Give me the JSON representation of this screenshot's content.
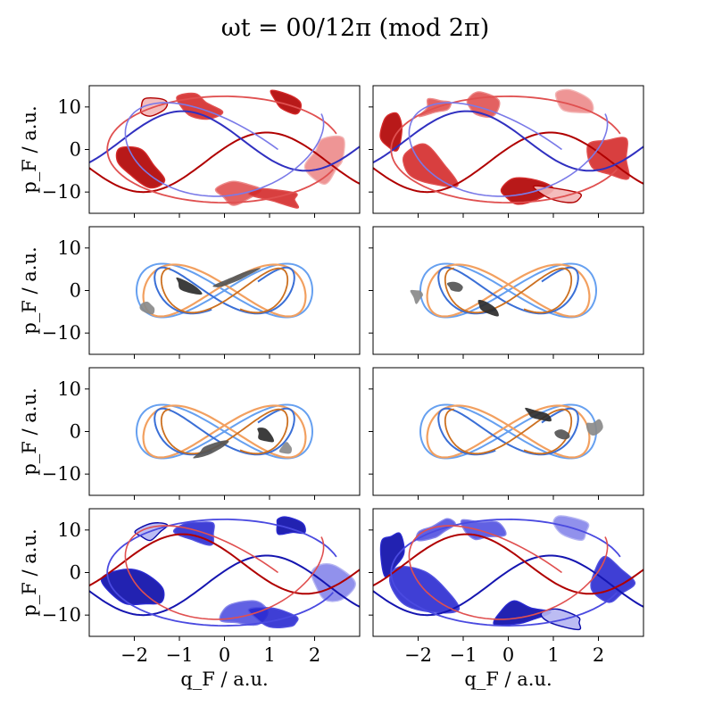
{
  "figure": {
    "title": "ωt = 00/12π    (mod 2π)",
    "xlabel": "q_F / a.u.",
    "ylabel": "p_F / a.u."
  },
  "chart_data": {
    "type": "phase-space grid",
    "rows": 4,
    "cols": 2,
    "xlim": [
      -3,
      3
    ],
    "ylim": [
      -15,
      15
    ],
    "xticks": [
      -2,
      -1,
      0,
      1,
      2
    ],
    "xtick_labels": [
      "−2",
      "−1",
      "0",
      "1",
      "2"
    ],
    "yticks": [
      -10,
      0,
      10
    ],
    "ytick_labels": [
      "−10",
      "0",
      "10"
    ],
    "palettes": {
      "red": [
        "#b00000",
        "#d42a2a",
        "#e05050",
        "#ec8a8a",
        "#f3b6b6"
      ],
      "gray": [
        "#2d2d2d",
        "#555555",
        "#8a8a8a",
        "#c4c4c4"
      ],
      "blue": [
        "#0a0aa8",
        "#2a2ad0",
        "#5050e0",
        "#8585ea",
        "#b5b5f2"
      ],
      "curves_red": [
        "#b00000",
        "#e05050",
        "#3030c0",
        "#7a7ae8"
      ],
      "curves_infinity": [
        "#3a6fd6",
        "#66a0f0",
        "#f2a060",
        "#cc7020",
        "#2a5cc8"
      ],
      "curves_blue": [
        "#1515b0",
        "#4a4ae0",
        "#b00000",
        "#e05050"
      ]
    },
    "panels": [
      {
        "row": 0,
        "col": 0,
        "theme": "red"
      },
      {
        "row": 0,
        "col": 1,
        "theme": "red"
      },
      {
        "row": 1,
        "col": 0,
        "theme": "infinity"
      },
      {
        "row": 1,
        "col": 1,
        "theme": "infinity"
      },
      {
        "row": 2,
        "col": 0,
        "theme": "infinity"
      },
      {
        "row": 2,
        "col": 1,
        "theme": "infinity"
      },
      {
        "row": 3,
        "col": 0,
        "theme": "blue"
      },
      {
        "row": 3,
        "col": 1,
        "theme": "blue"
      }
    ]
  }
}
